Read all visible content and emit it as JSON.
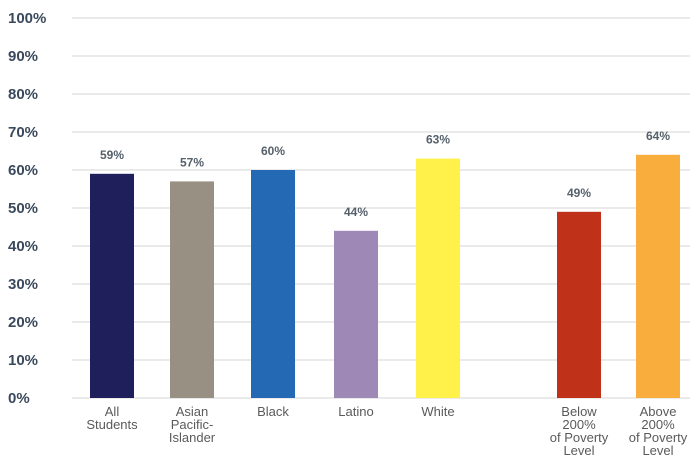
{
  "chart_data": {
    "type": "bar",
    "categories": [
      [
        "All",
        "Students"
      ],
      [
        "Asian",
        "Pacific-",
        "Islander"
      ],
      [
        "Black"
      ],
      [
        "Latino"
      ],
      [
        "White"
      ],
      [
        "Below",
        "200%",
        "of Poverty",
        "Level"
      ],
      [
        "Above",
        "200%",
        "of Poverty",
        "Level"
      ]
    ],
    "values": [
      59,
      57,
      60,
      44,
      63,
      49,
      64
    ],
    "data_labels": [
      "59%",
      "57%",
      "60%",
      "44%",
      "63%",
      "49%",
      "64%"
    ],
    "colors": [
      "#1f1f5c",
      "#999084",
      "#2369b3",
      "#9d88b6",
      "#fff04a",
      "#bf3118",
      "#f9ad3c"
    ],
    "ylim": [
      0,
      100
    ],
    "yticks": [
      "0%",
      "10%",
      "20%",
      "30%",
      "40%",
      "50%",
      "60%",
      "70%",
      "80%",
      "90%",
      "100%"
    ],
    "grid": true,
    "title": "",
    "xlabel": "",
    "ylabel": ""
  }
}
